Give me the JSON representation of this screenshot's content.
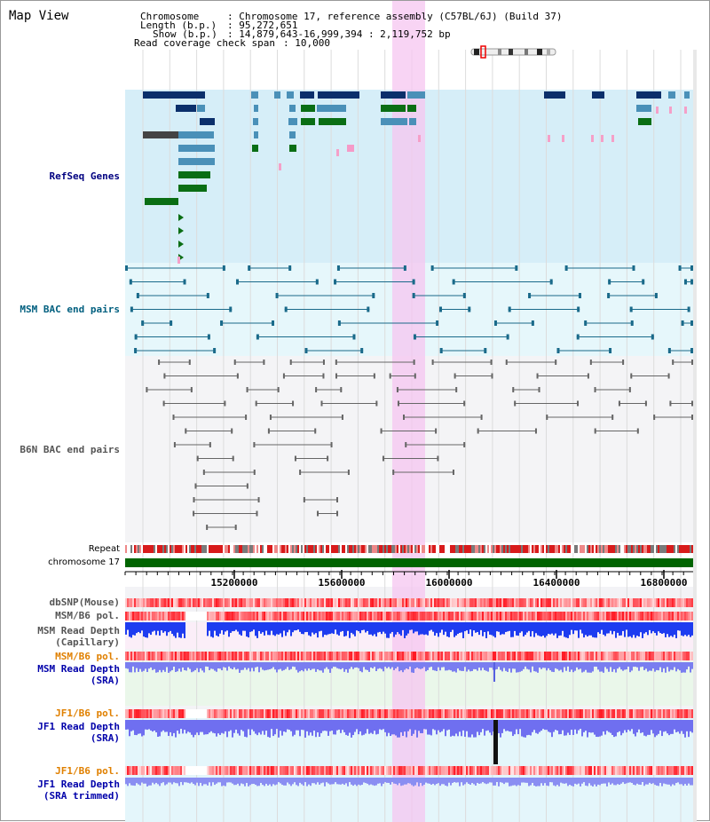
{
  "page_title": "Map View",
  "header": {
    "chromosome_label": "Chromosome",
    "chromosome_value": ": Chromosome 17, reference assembly (C57BL/6J) (Build 37)",
    "length_label": "Length (b.p.)",
    "length_value": ": 95,272,651",
    "show_label": "Show (b.p.)",
    "show_value": ": 14,879,643-16,999,394 : 2,119,752 bp",
    "coverage_label": "Read coverage check span",
    "coverage_value": ": 10,000"
  },
  "tracks": {
    "refseq": {
      "label": "RefSeq Genes",
      "color": "#000080"
    },
    "msm_bac": {
      "label": "MSM BAC end pairs",
      "color": "#005f7f"
    },
    "b6n_bac": {
      "label": "B6N BAC end pairs",
      "color": "#555555"
    },
    "repeat": {
      "label": "Repeat"
    },
    "chromosome": {
      "label": "chromosome 17",
      "color": "#006400"
    },
    "dbsnp": {
      "label": "dbSNP(Mouse)",
      "color": "#555555"
    },
    "msm_b6_pol_1": {
      "label": "MSM/B6 pol.",
      "color": "#555555"
    },
    "msm_depth_cap": {
      "label_line1": "MSM Read Depth",
      "label_line2": "(Capillary)",
      "color": "#555555"
    },
    "msm_b6_pol_2": {
      "label": "MSM/B6 pol.",
      "color": "#e08000"
    },
    "msm_depth_sra": {
      "label_line1": "MSM Read Depth",
      "label_line2": "(SRA)",
      "color": "#0000aa"
    },
    "jf1_b6_pol_1": {
      "label": "JF1/B6 pol.",
      "color": "#e08000"
    },
    "jf1_depth_sra": {
      "label_line1": "JF1 Read Depth",
      "label_line2": "(SRA)",
      "color": "#0000aa"
    },
    "jf1_b6_pol_2": {
      "label": "JF1/B6 pol.",
      "color": "#e08000"
    },
    "jf1_depth_trim": {
      "label_line1": "JF1 Read Depth",
      "label_line2": "(SRA trimmed)",
      "color": "#0000aa"
    }
  },
  "axis_ticks": [
    "15200000",
    "15600000",
    "16000000",
    "16400000",
    "16800000"
  ],
  "colors": {
    "highlight": "#f5c6f0",
    "refseq_bg": "#d6eef8",
    "msm_bac_bg": "#e6f7fb",
    "b6n_bg": "#f4f4f6",
    "gene_dark": "#0b2f6b",
    "gene_mid": "#4a90b8",
    "gene_green": "#0a6e14",
    "msm_line": "#1a6a8a",
    "b6n_line": "#666666"
  }
}
